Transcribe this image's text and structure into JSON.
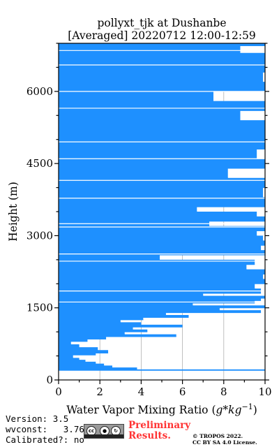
{
  "title": {
    "line1": "pollyxt_tjk at Dushanbe",
    "line2": "[Averaged] 20220712 12:00-12:59"
  },
  "chart_data": {
    "type": "line",
    "title": "pollyxt_tjk at Dushanbe [Averaged] 20220712 12:00-12:59",
    "xlabel": "Water Vapor Mixing Ratio",
    "xlabel_unit": "(g*kg^-1)",
    "ylabel": "Height (m)",
    "xlim": [
      0,
      10
    ],
    "ylim": [
      0,
      7000
    ],
    "xticks": [
      0,
      2,
      4,
      6,
      8,
      10
    ],
    "yticks": [
      0,
      1500,
      3000,
      4500,
      6000
    ],
    "grid": "vertical lines at x ticks",
    "color": "#1e90ff",
    "series": [
      {
        "heights": [
          200,
          220,
          260,
          300,
          340,
          380,
          420,
          460,
          520,
          560,
          620,
          680,
          740,
          800,
          850,
          900,
          950,
          1000,
          1050,
          1100,
          1150,
          1200,
          1250,
          1300,
          1350,
          1400,
          1450,
          1500,
          1550,
          1600,
          1650,
          1700,
          1750,
          1800,
          1900,
          2000,
          2100,
          2200,
          2300,
          2400,
          2500,
          2600,
          2700,
          2800,
          2900,
          3000,
          3100,
          3200,
          3300,
          3400,
          3500,
          3600,
          3700,
          3800,
          4000,
          4200,
          4400,
          4600,
          4800,
          5000,
          5200,
          5400,
          5600,
          5800,
          6000,
          6200,
          6400,
          6600,
          6800,
          6950
        ],
        "values": [
          10,
          3.8,
          2.6,
          2.2,
          1.8,
          1.3,
          1.0,
          0.7,
          1.8,
          2.4,
          1.9,
          1.0,
          0.6,
          1.4,
          2.3,
          5.7,
          3.2,
          4.3,
          3.6,
          6.0,
          4.0,
          3.0,
          4.1,
          6.3,
          5.2,
          9.8,
          7.8,
          10,
          6.5,
          9.5,
          9.8,
          10,
          7.0,
          9.8,
          9.5,
          10,
          9.9,
          10,
          9.1,
          9.5,
          4.9,
          10,
          9.8,
          10,
          9.9,
          9.6,
          10,
          7.3,
          10,
          9.6,
          6.7,
          10,
          10,
          9.9,
          10,
          8.2,
          10,
          9.6,
          10,
          10,
          10,
          8.8,
          10,
          7.5,
          10,
          9.9,
          10,
          10,
          8.8,
          10
        ]
      }
    ]
  },
  "footer": {
    "version": "Version: 3.5",
    "wvconst": "wvconst:   3.76",
    "calibrated": "Calibrated?: no",
    "cc_label": "cc",
    "preliminary_line1": "Preliminary",
    "preliminary_line2": "Results.",
    "copyright_line1": "© TROPOS 2022.",
    "copyright_line2": "CC BY SA 4.0 License."
  }
}
